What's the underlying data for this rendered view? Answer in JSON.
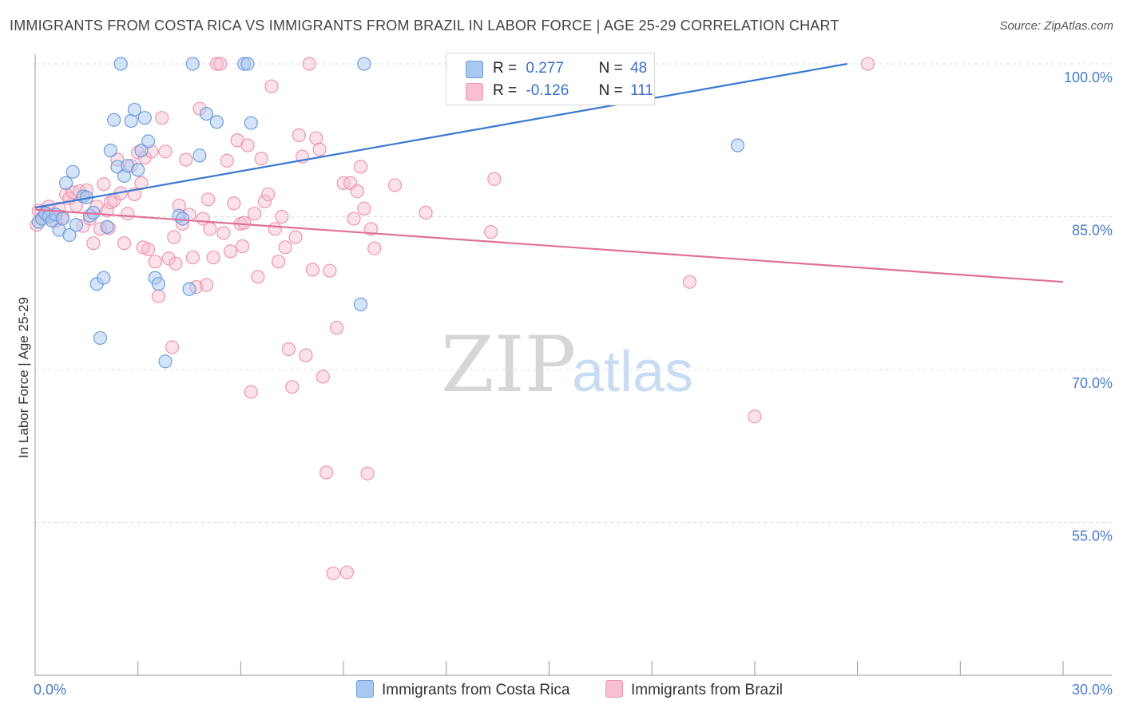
{
  "title": "IMMIGRANTS FROM COSTA RICA VS IMMIGRANTS FROM BRAZIL IN LABOR FORCE | AGE 25-29 CORRELATION CHART",
  "source": "Source: ZipAtlas.com",
  "watermark": {
    "zip": "ZIP",
    "atlas": "atlas"
  },
  "legend": {
    "rows": [
      {
        "r_label": "R =",
        "r_value": "0.277",
        "n_label": "N =",
        "n_value": "48"
      },
      {
        "r_label": "R =",
        "r_value": "-0.126",
        "n_label": "N =",
        "n_value": "111"
      }
    ]
  },
  "colors": {
    "costa_rica_fill": "#a9c8f0",
    "costa_rica_stroke": "#6e9edb",
    "costa_rica_line": "#3a78d0",
    "brazil_fill": "#f7bfd1",
    "brazil_stroke": "#ef93b1",
    "brazil_line": "#e0709a"
  },
  "chart_data": {
    "type": "scatter",
    "title": "IMMIGRANTS FROM COSTA RICA VS IMMIGRANTS FROM BRAZIL IN LABOR FORCE | AGE 25-29 CORRELATION CHART",
    "xlabel": "",
    "ylabel": "In Labor Force | Age 25-29",
    "xlim": [
      0,
      30
    ],
    "ylim": [
      40,
      100
    ],
    "x_tick_labels": [
      "0.0%",
      "30.0%"
    ],
    "y_ticks": [
      {
        "value": 100,
        "label": "100.0%"
      },
      {
        "value": 85,
        "label": "85.0%"
      },
      {
        "value": 70,
        "label": "70.0%"
      },
      {
        "value": 55,
        "label": "55.0%"
      }
    ],
    "grid": true,
    "legend_position": "top-center",
    "series": [
      {
        "name": "Immigrants from Costa Rica",
        "r": 0.277,
        "n": 48,
        "trend": {
          "x0": 0,
          "y0": 85.9,
          "x1": 23.7,
          "y1": 100
        },
        "points": [
          [
            0.1,
            84.5
          ],
          [
            0.2,
            84.8
          ],
          [
            0.3,
            85.3
          ],
          [
            0.4,
            85.0
          ],
          [
            0.5,
            84.6
          ],
          [
            0.6,
            85.2
          ],
          [
            0.7,
            83.7
          ],
          [
            0.8,
            84.8
          ],
          [
            0.9,
            88.3
          ],
          [
            1.0,
            83.2
          ],
          [
            1.1,
            89.4
          ],
          [
            1.2,
            84.2
          ],
          [
            1.4,
            87.0
          ],
          [
            1.5,
            86.9
          ],
          [
            1.6,
            85.1
          ],
          [
            1.7,
            85.4
          ],
          [
            1.8,
            78.4
          ],
          [
            1.9,
            73.1
          ],
          [
            2.0,
            79.0
          ],
          [
            2.1,
            84.0
          ],
          [
            2.2,
            91.5
          ],
          [
            2.3,
            94.5
          ],
          [
            2.4,
            89.9
          ],
          [
            2.5,
            100
          ],
          [
            2.6,
            89.0
          ],
          [
            2.7,
            90.0
          ],
          [
            2.8,
            94.4
          ],
          [
            2.9,
            95.5
          ],
          [
            3.0,
            89.6
          ],
          [
            3.1,
            91.5
          ],
          [
            3.2,
            94.7
          ],
          [
            3.3,
            92.4
          ],
          [
            3.5,
            79.0
          ],
          [
            3.6,
            78.4
          ],
          [
            3.8,
            70.8
          ],
          [
            4.2,
            85.1
          ],
          [
            4.5,
            77.9
          ],
          [
            4.6,
            100
          ],
          [
            4.8,
            91.0
          ],
          [
            5.0,
            95.1
          ],
          [
            5.3,
            94.3
          ],
          [
            6.1,
            100
          ],
          [
            6.2,
            100
          ],
          [
            6.3,
            94.2
          ],
          [
            9.5,
            76.4
          ],
          [
            9.6,
            100
          ],
          [
            20.5,
            92.0
          ],
          [
            4.3,
            84.8
          ]
        ]
      },
      {
        "name": "Immigrants from Brazil",
        "r": -0.126,
        "n": 111,
        "trend": {
          "x0": 0,
          "y0": 85.7,
          "x1": 30,
          "y1": 78.6
        },
        "points": [
          [
            0.05,
            84.2
          ],
          [
            0.1,
            85.6
          ],
          [
            0.2,
            84.9
          ],
          [
            0.3,
            85.4
          ],
          [
            0.4,
            86.0
          ],
          [
            0.5,
            85.2
          ],
          [
            0.6,
            84.6
          ],
          [
            0.7,
            85.8
          ],
          [
            0.8,
            85.0
          ],
          [
            0.9,
            87.2
          ],
          [
            1.0,
            86.8
          ],
          [
            1.1,
            87.4
          ],
          [
            1.2,
            86.1
          ],
          [
            1.3,
            87.5
          ],
          [
            1.4,
            84.1
          ],
          [
            1.5,
            87.6
          ],
          [
            1.6,
            84.8
          ],
          [
            1.7,
            82.4
          ],
          [
            1.8,
            86.0
          ],
          [
            1.9,
            83.8
          ],
          [
            2.0,
            88.2
          ],
          [
            2.1,
            85.6
          ],
          [
            2.2,
            86.4
          ],
          [
            2.3,
            86.6
          ],
          [
            2.4,
            90.6
          ],
          [
            2.5,
            87.3
          ],
          [
            2.6,
            82.4
          ],
          [
            2.7,
            85.3
          ],
          [
            2.8,
            90.0
          ],
          [
            2.9,
            87.2
          ],
          [
            3.0,
            91.3
          ],
          [
            3.1,
            88.3
          ],
          [
            3.2,
            90.8
          ],
          [
            3.3,
            81.8
          ],
          [
            3.4,
            91.4
          ],
          [
            3.5,
            80.6
          ],
          [
            3.6,
            77.2
          ],
          [
            3.7,
            94.7
          ],
          [
            3.8,
            91.4
          ],
          [
            3.9,
            80.9
          ],
          [
            4.0,
            72.2
          ],
          [
            4.1,
            80.4
          ],
          [
            4.2,
            86.1
          ],
          [
            4.3,
            84.3
          ],
          [
            4.4,
            90.6
          ],
          [
            4.5,
            85.2
          ],
          [
            4.6,
            81.0
          ],
          [
            4.7,
            78.1
          ],
          [
            4.8,
            95.6
          ],
          [
            4.9,
            84.8
          ],
          [
            5.0,
            78.3
          ],
          [
            5.1,
            83.8
          ],
          [
            5.2,
            81.0
          ],
          [
            5.3,
            100
          ],
          [
            5.4,
            100
          ],
          [
            5.5,
            83.4
          ],
          [
            5.6,
            90.5
          ],
          [
            5.7,
            81.6
          ],
          [
            5.8,
            86.3
          ],
          [
            5.9,
            92.5
          ],
          [
            6.0,
            84.3
          ],
          [
            6.1,
            84.4
          ],
          [
            6.2,
            92.0
          ],
          [
            6.3,
            67.8
          ],
          [
            6.4,
            85.3
          ],
          [
            6.5,
            79.1
          ],
          [
            6.6,
            90.7
          ],
          [
            6.7,
            86.5
          ],
          [
            6.8,
            87.2
          ],
          [
            6.9,
            97.8
          ],
          [
            7.0,
            83.8
          ],
          [
            7.1,
            80.6
          ],
          [
            7.2,
            85.0
          ],
          [
            7.3,
            82.0
          ],
          [
            7.4,
            72.0
          ],
          [
            7.5,
            68.3
          ],
          [
            7.6,
            83.0
          ],
          [
            7.7,
            93.0
          ],
          [
            7.8,
            90.9
          ],
          [
            7.9,
            71.4
          ],
          [
            8.0,
            100
          ],
          [
            8.1,
            79.8
          ],
          [
            8.2,
            92.7
          ],
          [
            8.3,
            91.6
          ],
          [
            8.4,
            69.3
          ],
          [
            8.5,
            59.9
          ],
          [
            8.6,
            79.7
          ],
          [
            8.7,
            50.0
          ],
          [
            8.8,
            74.1
          ],
          [
            9.0,
            88.3
          ],
          [
            9.1,
            50.1
          ],
          [
            9.2,
            88.3
          ],
          [
            9.3,
            84.8
          ],
          [
            9.4,
            87.5
          ],
          [
            9.5,
            89.9
          ],
          [
            9.6,
            85.8
          ],
          [
            9.7,
            59.8
          ],
          [
            9.8,
            83.8
          ],
          [
            9.9,
            81.9
          ],
          [
            10.5,
            88.1
          ],
          [
            11.4,
            85.4
          ],
          [
            13.3,
            83.5
          ],
          [
            13.4,
            88.7
          ],
          [
            19.1,
            78.6
          ],
          [
            21.0,
            65.4
          ],
          [
            24.3,
            100
          ],
          [
            2.15,
            83.9
          ],
          [
            3.15,
            82.0
          ],
          [
            4.05,
            83.0
          ],
          [
            5.05,
            86.7
          ],
          [
            6.05,
            82.1
          ]
        ]
      }
    ]
  },
  "bottom_legend": [
    "Immigrants from Costa Rica",
    "Immigrants from Brazil"
  ]
}
